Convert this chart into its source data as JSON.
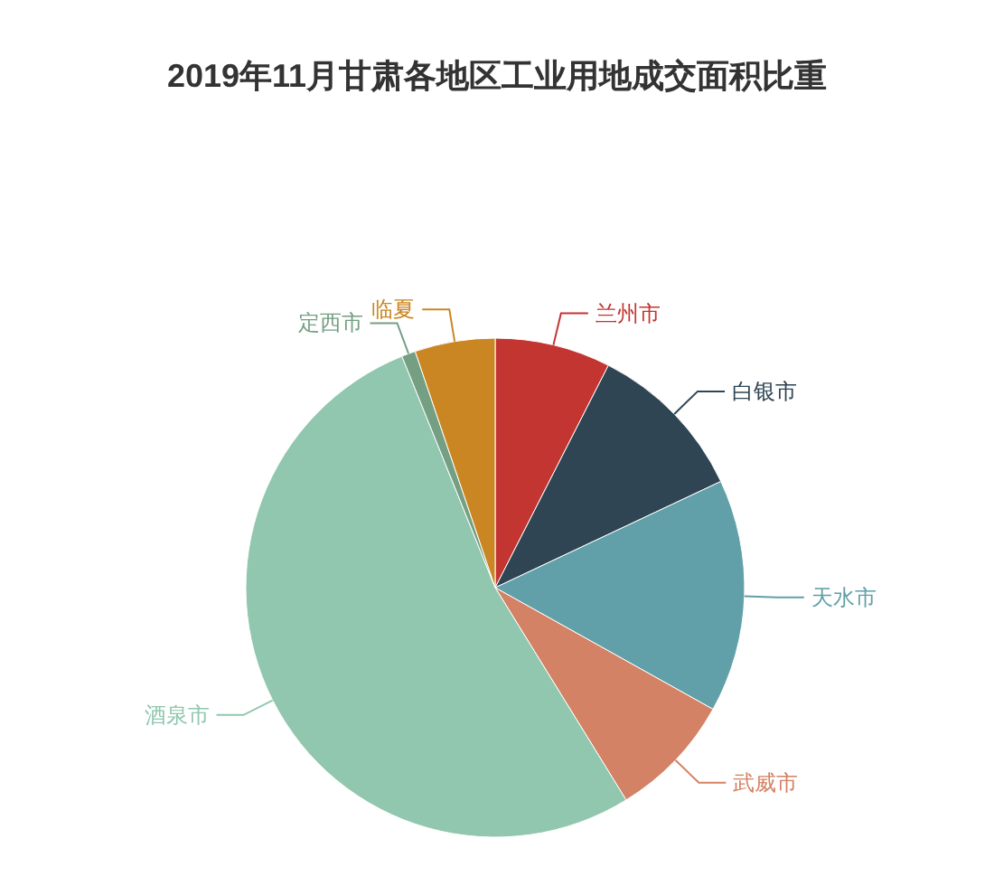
{
  "chart_data": {
    "type": "pie",
    "title": "2019年11月甘肃各地区工业用地成交面积比重",
    "categories": [
      "兰州市",
      "白银市",
      "天水市",
      "武威市",
      "酒泉市",
      "定西市",
      "临夏"
    ],
    "values": [
      7.5,
      10.5,
      15.1,
      8.1,
      52.7,
      0.9,
      5.2
    ],
    "colors": [
      "#c23531",
      "#2f4554",
      "#61a0a8",
      "#d48265",
      "#91c7ae",
      "#749f83",
      "#ca8622"
    ]
  }
}
